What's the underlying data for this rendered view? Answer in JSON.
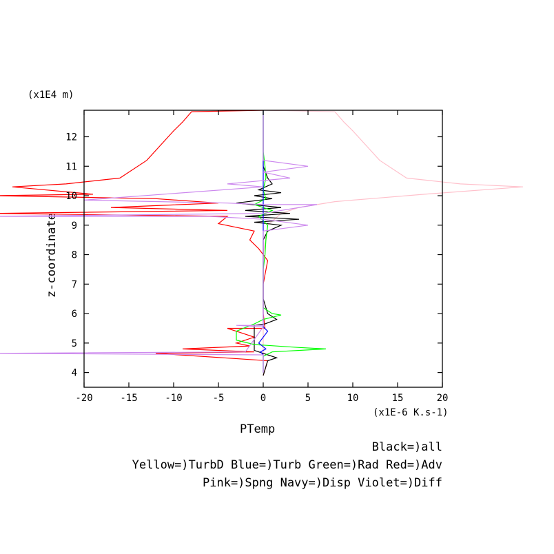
{
  "chart_data": {
    "type": "line",
    "xlabel": "PTemp",
    "ylabel": "z-coordinate",
    "x_unit_label": "(x1E-6 K.s-1)",
    "y_unit_label": "(x1E4 m)",
    "xlim": [
      -20,
      20
    ],
    "ylim": [
      3.5,
      12.9
    ],
    "x_ticks": [
      -20,
      -15,
      -10,
      -5,
      0,
      5,
      10,
      15,
      20
    ],
    "x_tick_labels": [
      "-20",
      "-15",
      "-10",
      "-5",
      "0",
      "5",
      "10",
      "15",
      "20"
    ],
    "y_ticks": [
      4,
      5,
      6,
      7,
      8,
      9,
      10,
      11,
      12
    ],
    "y_tick_labels": [
      "4",
      "5",
      "6",
      "7",
      "8",
      "9",
      "10",
      "11",
      "12"
    ],
    "grid": false,
    "legend_lines": [
      "Black=)all",
      "Yellow=)TurbD Blue=)Turb Green=)Rad Red=)Adv",
      "Pink=)Spng Navy=)Disp Violet=)Diff"
    ],
    "series": [
      {
        "color": "#ff0000",
        "points": [
          [
            0,
            12.9
          ],
          [
            -8,
            12.85
          ],
          [
            -9,
            12.5
          ],
          [
            -10,
            12.2
          ],
          [
            -13,
            11.2
          ],
          [
            -16,
            10.6
          ],
          [
            -22,
            10.4
          ],
          [
            -28,
            10.3
          ],
          [
            -19,
            10.05
          ],
          [
            -30,
            10.0
          ],
          [
            -12,
            9.9
          ],
          [
            -5,
            9.75
          ],
          [
            -17,
            9.6
          ],
          [
            -4,
            9.5
          ],
          [
            -30,
            9.4
          ],
          [
            -4,
            9.3
          ],
          [
            -5,
            9.05
          ],
          [
            -1,
            8.8
          ],
          [
            -1.5,
            8.5
          ],
          [
            -0.5,
            8.2
          ],
          [
            0.5,
            7.8
          ],
          [
            0,
            7.0
          ],
          [
            0,
            6.0
          ],
          [
            0.2,
            5.5
          ],
          [
            -4,
            5.5
          ],
          [
            -3,
            5.4
          ],
          [
            -1,
            5.2
          ],
          [
            -3,
            5.0
          ],
          [
            -1.5,
            4.9
          ],
          [
            -9,
            4.8
          ],
          [
            -1,
            4.7
          ],
          [
            -12,
            4.65
          ],
          [
            0.5,
            4.4
          ],
          [
            0,
            3.9
          ]
        ]
      },
      {
        "color": "#ffc0cb",
        "points": [
          [
            0,
            12.9
          ],
          [
            8,
            12.85
          ],
          [
            9,
            12.5
          ],
          [
            10,
            12.2
          ],
          [
            13,
            11.2
          ],
          [
            16,
            10.6
          ],
          [
            22,
            10.4
          ],
          [
            29,
            10.3
          ],
          [
            18,
            10.05
          ],
          [
            12,
            9.9
          ],
          [
            8,
            9.8
          ],
          [
            4,
            9.6
          ],
          [
            2,
            9.4
          ],
          [
            0.5,
            9.0
          ],
          [
            0,
            8.0
          ],
          [
            0,
            7.0
          ],
          [
            0,
            5.5
          ],
          [
            0,
            4.0
          ]
        ]
      },
      {
        "color": "#000000",
        "points": [
          [
            0,
            12.9
          ],
          [
            0,
            11.0
          ],
          [
            0.5,
            10.6
          ],
          [
            1,
            10.4
          ],
          [
            -0.5,
            10.2
          ],
          [
            2,
            10.1
          ],
          [
            -1,
            10.0
          ],
          [
            1,
            9.9
          ],
          [
            -3,
            9.75
          ],
          [
            2,
            9.6
          ],
          [
            -2,
            9.5
          ],
          [
            3,
            9.4
          ],
          [
            -2,
            9.3
          ],
          [
            4,
            9.2
          ],
          [
            -1,
            9.1
          ],
          [
            2,
            9.0
          ],
          [
            0.5,
            8.8
          ],
          [
            0,
            8.5
          ],
          [
            0,
            7.5
          ],
          [
            0,
            6.5
          ],
          [
            0.5,
            6.0
          ],
          [
            1.5,
            5.8
          ],
          [
            0.2,
            5.65
          ],
          [
            -1,
            5.6
          ],
          [
            -1,
            5.2
          ],
          [
            -1,
            5.0
          ],
          [
            -1,
            4.75
          ],
          [
            0.5,
            4.6
          ],
          [
            1.5,
            4.5
          ],
          [
            0.5,
            4.4
          ],
          [
            0,
            3.9
          ]
        ]
      },
      {
        "color": "#00ff00",
        "points": [
          [
            0,
            12.9
          ],
          [
            0,
            11.5
          ],
          [
            0.2,
            11.0
          ],
          [
            0.3,
            10.6
          ],
          [
            0,
            10.2
          ],
          [
            0.3,
            9.9
          ],
          [
            -1,
            9.7
          ],
          [
            1,
            9.5
          ],
          [
            -0.5,
            9.3
          ],
          [
            0.5,
            9.0
          ],
          [
            0.3,
            8.5
          ],
          [
            0.2,
            8.0
          ],
          [
            0,
            7.5
          ],
          [
            0,
            7.0
          ],
          [
            0,
            6.5
          ],
          [
            0,
            6.2
          ],
          [
            1,
            6.0
          ],
          [
            2,
            5.95
          ],
          [
            0,
            5.8
          ],
          [
            -1,
            5.65
          ],
          [
            -3,
            5.4
          ],
          [
            -3,
            5.1
          ],
          [
            -1,
            4.95
          ],
          [
            4,
            4.85
          ],
          [
            7,
            4.8
          ],
          [
            1,
            4.7
          ],
          [
            0,
            4.55
          ],
          [
            0,
            4.0
          ]
        ]
      },
      {
        "color": "#0000ff",
        "points": [
          [
            0,
            12.9
          ],
          [
            0,
            6.0
          ],
          [
            0,
            5.55
          ],
          [
            0.5,
            5.4
          ],
          [
            0,
            5.2
          ],
          [
            -0.5,
            5.0
          ],
          [
            0.3,
            4.8
          ],
          [
            -0.3,
            4.7
          ],
          [
            0,
            4.6
          ],
          [
            0,
            4.0
          ]
        ]
      },
      {
        "color": "#cc88ee",
        "points": [
          [
            0,
            12.9
          ],
          [
            0,
            11.2
          ],
          [
            5,
            11.0
          ],
          [
            0,
            10.8
          ],
          [
            3,
            10.6
          ],
          [
            -4,
            10.4
          ],
          [
            0,
            10.3
          ],
          [
            -20,
            9.85
          ],
          [
            -4,
            9.75
          ],
          [
            0,
            9.7
          ],
          [
            6,
            9.7
          ],
          [
            0,
            9.4
          ],
          [
            -30,
            9.3
          ],
          [
            -6,
            9.3
          ],
          [
            0,
            9.2
          ],
          [
            5,
            9.0
          ],
          [
            0,
            8.8
          ],
          [
            0,
            5.6
          ],
          [
            -3,
            5.6
          ],
          [
            0,
            5.55
          ],
          [
            -2,
            4.7
          ],
          [
            -30,
            4.65
          ],
          [
            0,
            4.6
          ],
          [
            0,
            4.0
          ]
        ]
      }
    ]
  }
}
